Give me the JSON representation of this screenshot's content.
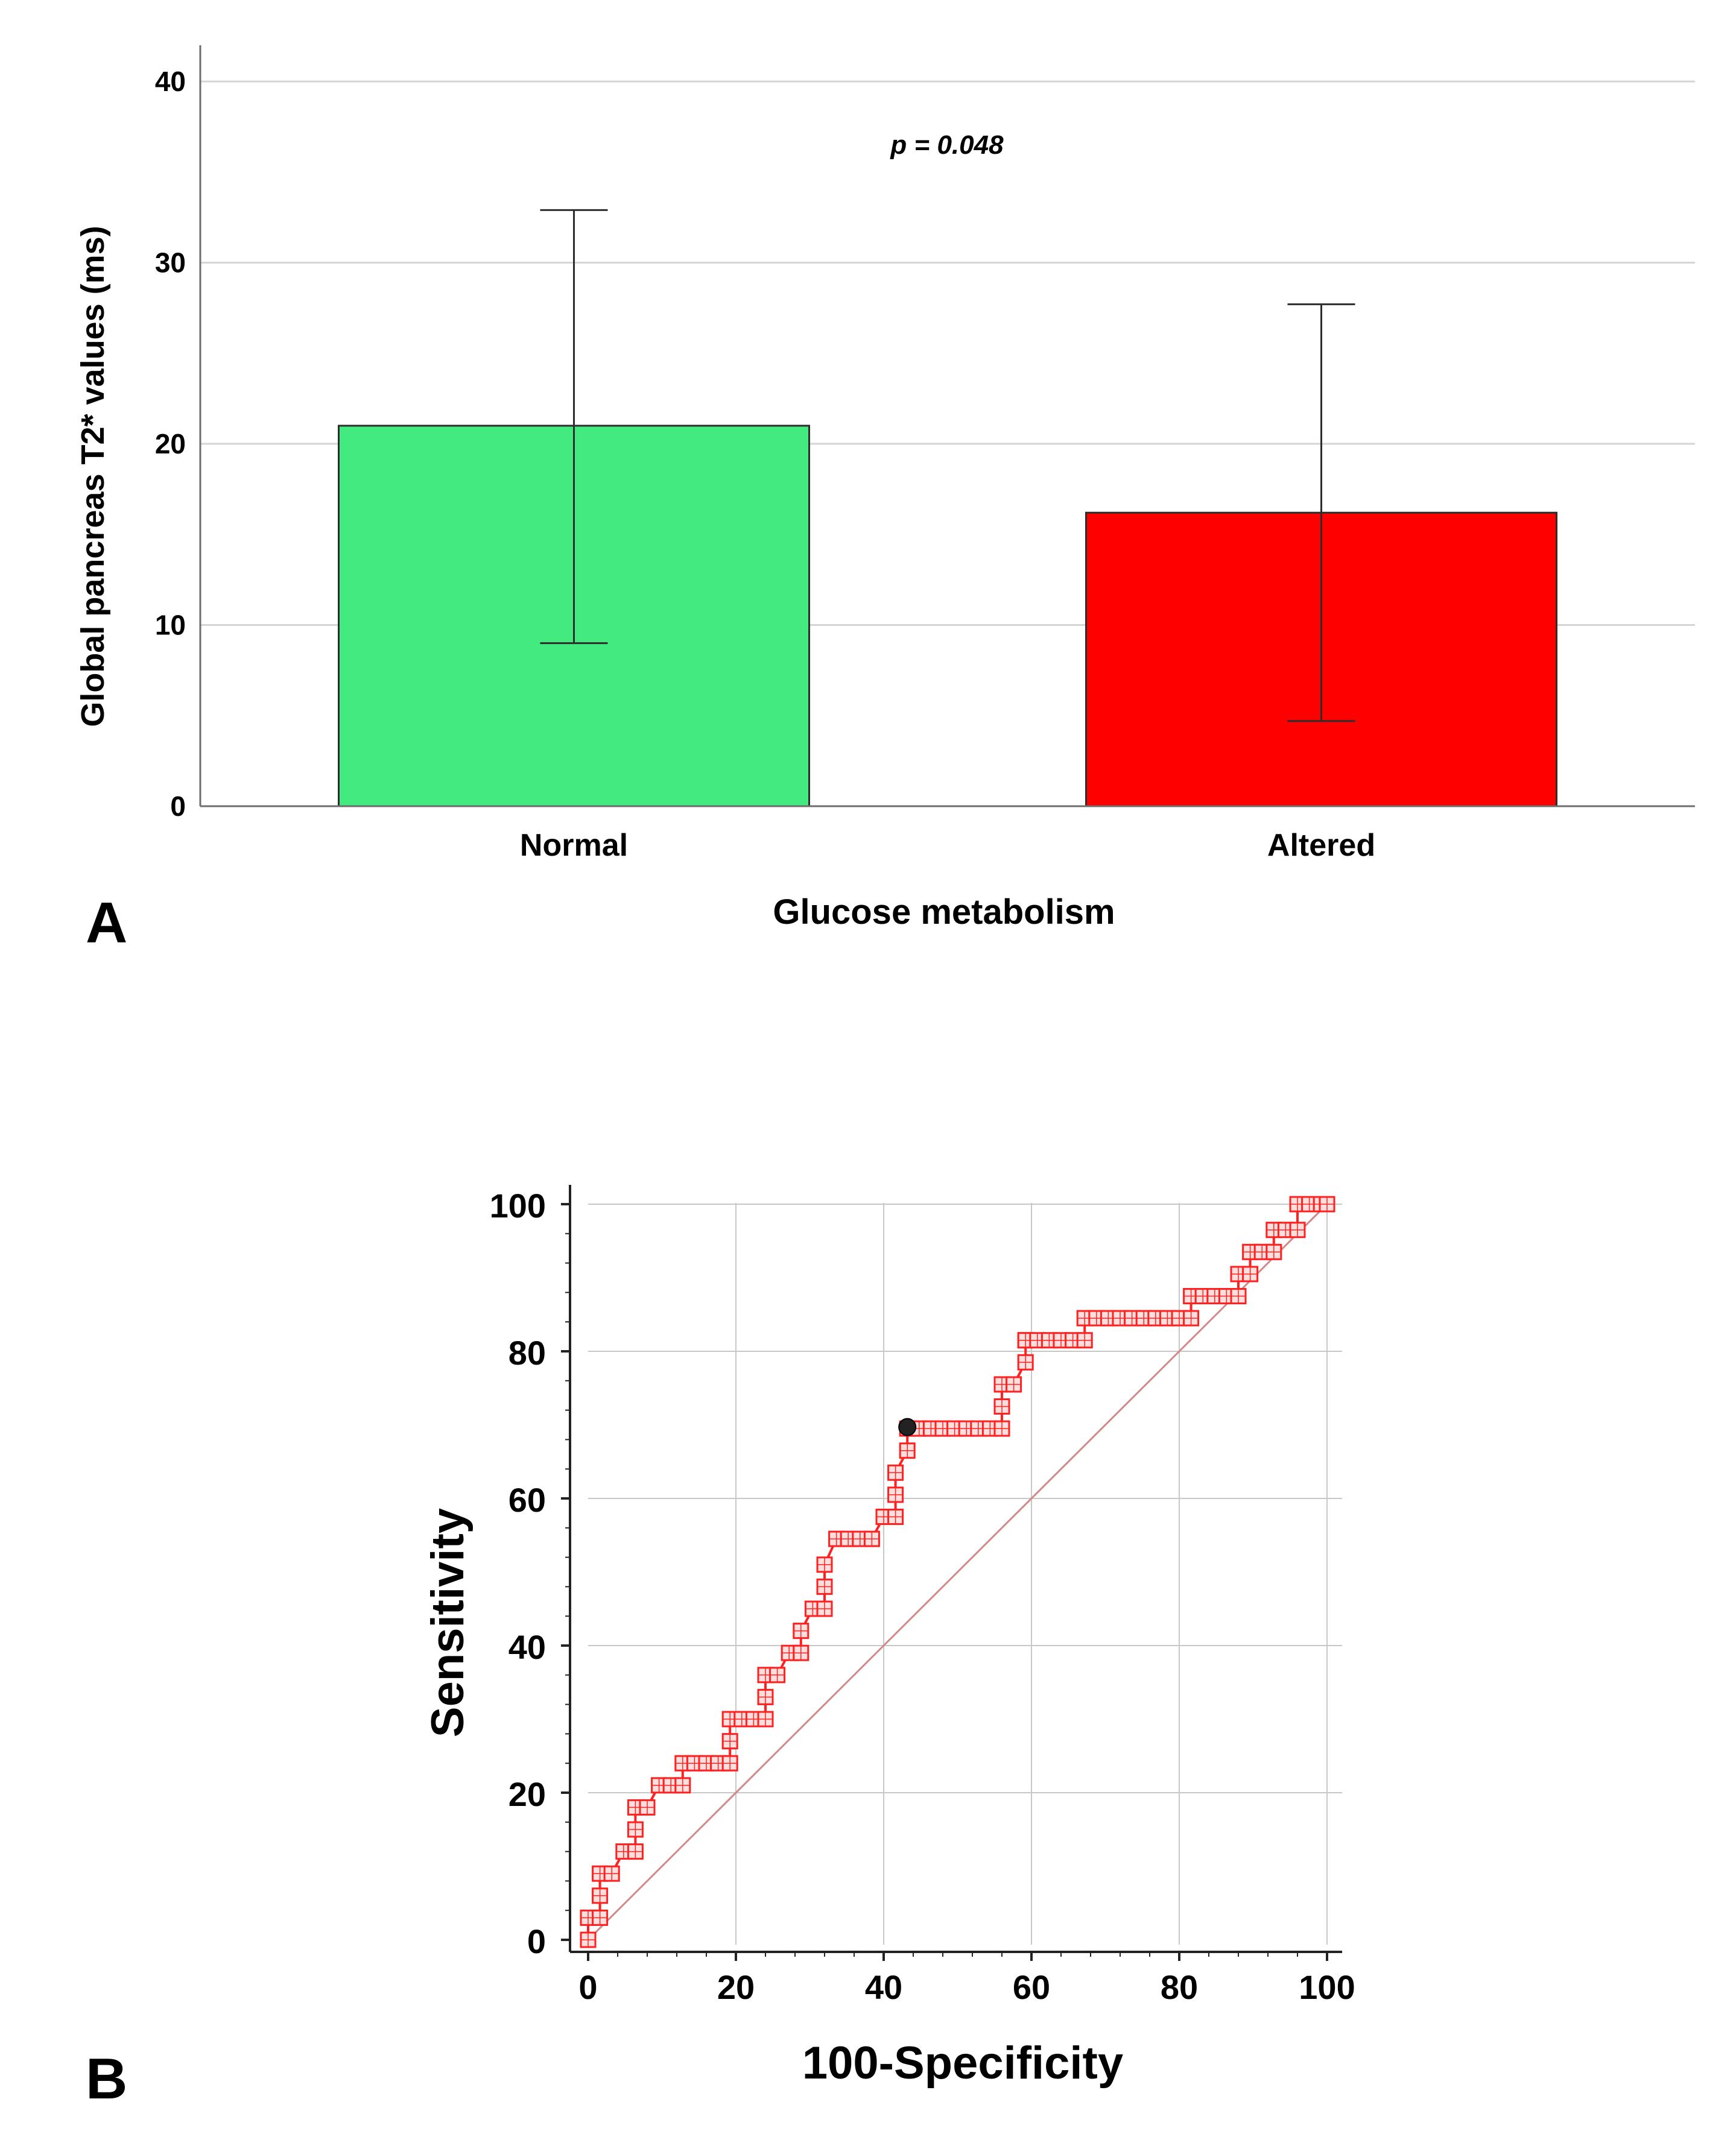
{
  "chart_data": [
    {
      "type": "bar",
      "panel_label": "A",
      "categories": [
        "Normal",
        "Altered"
      ],
      "values": [
        21.0,
        16.2
      ],
      "error_low": [
        9.0,
        4.7
      ],
      "error_high": [
        32.9,
        27.7
      ],
      "colors": [
        "#43ea7f",
        "#ff0000"
      ],
      "annotation": "p = 0.048",
      "xlabel": "Glucose metabolism",
      "ylabel": "Global pancreas T2* values (ms)",
      "ylim": [
        0,
        42
      ],
      "yticks": [
        0,
        10,
        20,
        30,
        40
      ],
      "grid": true
    },
    {
      "type": "line",
      "panel_label": "B",
      "xlabel": "100-Specificity",
      "ylabel": "Sensitivity",
      "xlim": [
        0,
        100
      ],
      "ylim": [
        0,
        100
      ],
      "xticks": [
        0,
        20,
        40,
        60,
        80,
        100
      ],
      "yticks": [
        0,
        20,
        40,
        60,
        80,
        100
      ],
      "grid": true,
      "series": [
        {
          "name": "ROC curve",
          "color": "#ff2020",
          "x": [
            0,
            0,
            1.6,
            1.6,
            1.6,
            3.2,
            4.8,
            6.4,
            6.4,
            6.4,
            8,
            9.6,
            11.2,
            12.8,
            12.8,
            14.4,
            16,
            17.6,
            19.2,
            19.2,
            19.2,
            20.8,
            22.4,
            24,
            24,
            24,
            25.6,
            27.2,
            28.8,
            28.8,
            30.4,
            32,
            32,
            32,
            33.6,
            35.2,
            36.8,
            38.4,
            40,
            40,
            41.6,
            41.6,
            41.6,
            43.2,
            43.2,
            44.8,
            46.4,
            48,
            49.6,
            51.2,
            52.8,
            54.4,
            56,
            56,
            56,
            57.6,
            59.2,
            59.2,
            59.2,
            60.8,
            62.4,
            64,
            65.6,
            67.2,
            67.2,
            68.8,
            70.4,
            72,
            73.6,
            75.2,
            76.8,
            78.4,
            80,
            81.6,
            81.6,
            83.2,
            84.8,
            86.4,
            88,
            88,
            89.6,
            89.6,
            91.2,
            92.8,
            92.8,
            94.4,
            96,
            96,
            97.6,
            99.2,
            100
          ],
          "y": [
            0,
            3,
            3,
            6,
            9,
            9,
            12,
            12,
            15,
            18,
            18,
            21,
            21,
            21,
            24,
            24,
            24,
            24,
            24,
            27,
            30,
            30,
            30,
            30,
            33,
            36,
            36,
            39,
            39,
            42,
            45,
            45,
            48,
            51,
            54.5,
            54.5,
            54.5,
            54.5,
            57.5,
            57.5,
            57.5,
            60.5,
            63.5,
            66.5,
            69.5,
            69.5,
            69.5,
            69.5,
            69.5,
            69.5,
            69.5,
            69.5,
            69.5,
            72.5,
            75.5,
            75.5,
            78.5,
            81.5,
            81.5,
            81.5,
            81.5,
            81.5,
            81.5,
            81.5,
            84.5,
            84.5,
            84.5,
            84.5,
            84.5,
            84.5,
            84.5,
            84.5,
            84.5,
            84.5,
            87.5,
            87.5,
            87.5,
            87.5,
            87.5,
            90.5,
            90.5,
            93.5,
            93.5,
            93.5,
            96.5,
            96.5,
            96.5,
            100,
            100,
            100,
            100
          ]
        },
        {
          "name": "Reference line",
          "color": "#d08a8a",
          "x": [
            0,
            100
          ],
          "y": [
            0,
            100
          ]
        }
      ],
      "optimal_point": {
        "x": 43.2,
        "y": 69.7
      }
    }
  ]
}
